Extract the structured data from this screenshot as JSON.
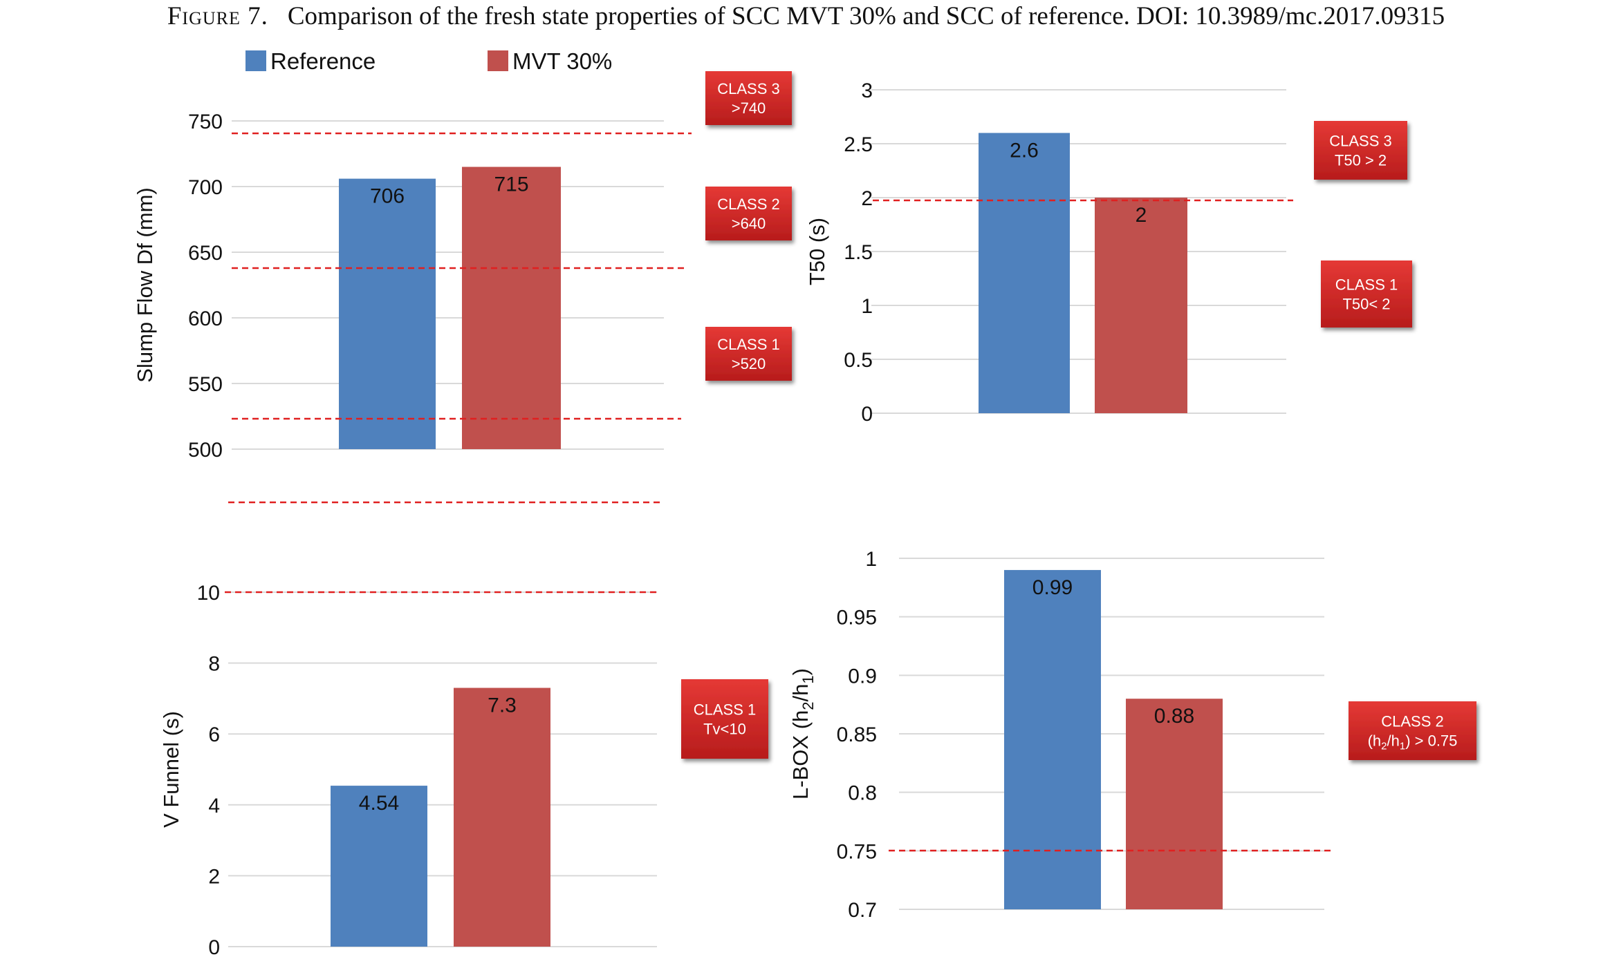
{
  "figure": {
    "label": "Figure 7.",
    "caption": "Comparison of the fresh state properties of SCC MVT 30% and SCC of reference. DOI: 10.3989/mc.2017.09315"
  },
  "colors": {
    "reference": "#4f81bd",
    "mvt": "#c0504d",
    "threshold": "#e02020",
    "grid": "#d9d9d9",
    "class_box": "#c62828"
  },
  "legend": [
    {
      "name": "Reference",
      "color": "#4f81bd"
    },
    {
      "name": "MVT 30%",
      "color": "#c0504d"
    }
  ],
  "chart_data": [
    {
      "type": "bar",
      "categories": [
        "Reference",
        "MVT 30%"
      ],
      "values": [
        706,
        715
      ],
      "labels": [
        "706",
        "715"
      ],
      "ylabel": "Slump Flow Df (mm)",
      "ylim": [
        500,
        750
      ],
      "yticks": [
        "500",
        "550",
        "600",
        "650",
        "700",
        "750"
      ],
      "grid": true,
      "thresholds": [
        740,
        640,
        520
      ],
      "class_boxes": [
        {
          "line1": "CLASS 3",
          "line2": ">740"
        },
        {
          "line1": "CLASS 2",
          "line2": ">640"
        },
        {
          "line1": "CLASS 1",
          "line2": ">520"
        }
      ]
    },
    {
      "type": "bar",
      "categories": [
        "Reference",
        "MVT 30%"
      ],
      "values": [
        2.6,
        2
      ],
      "labels": [
        "2.6",
        "2"
      ],
      "ylabel": "T50 (s)",
      "ylim": [
        0,
        3
      ],
      "yticks": [
        "0",
        "0.5",
        "1",
        "1.5",
        "2",
        "2.5",
        "3"
      ],
      "grid": true,
      "thresholds": [
        2
      ],
      "class_boxes": [
        {
          "line1": "CLASS 3",
          "line2": "T50 > 2"
        },
        {
          "line1": "CLASS 1",
          "line2": "T50< 2"
        }
      ]
    },
    {
      "type": "bar",
      "categories": [
        "Reference",
        "MVT 30%"
      ],
      "values": [
        4.54,
        7.3
      ],
      "labels": [
        "4.54",
        "7.3"
      ],
      "ylabel": "V Funnel (s)",
      "ylim": [
        0,
        10
      ],
      "yticks": [
        "0",
        "2",
        "4",
        "6",
        "8",
        "10"
      ],
      "grid": true,
      "thresholds": [
        10
      ],
      "class_boxes": [
        {
          "line1": "CLASS 1",
          "line2": "Tv<10"
        }
      ]
    },
    {
      "type": "bar",
      "categories": [
        "Reference",
        "MVT 30%"
      ],
      "values": [
        0.99,
        0.88
      ],
      "labels": [
        "0.99",
        "0.88"
      ],
      "ylabel": "L-BOX (h2/h1)",
      "ylim": [
        0.7,
        1
      ],
      "yticks": [
        "0.7",
        "0.75",
        "0.8",
        "0.85",
        "0.9",
        "0.95",
        "1"
      ],
      "grid": true,
      "thresholds": [
        0.75
      ],
      "class_boxes": [
        {
          "line1": "CLASS 2",
          "line2": "(h2/h1) > 0.75"
        }
      ]
    }
  ]
}
